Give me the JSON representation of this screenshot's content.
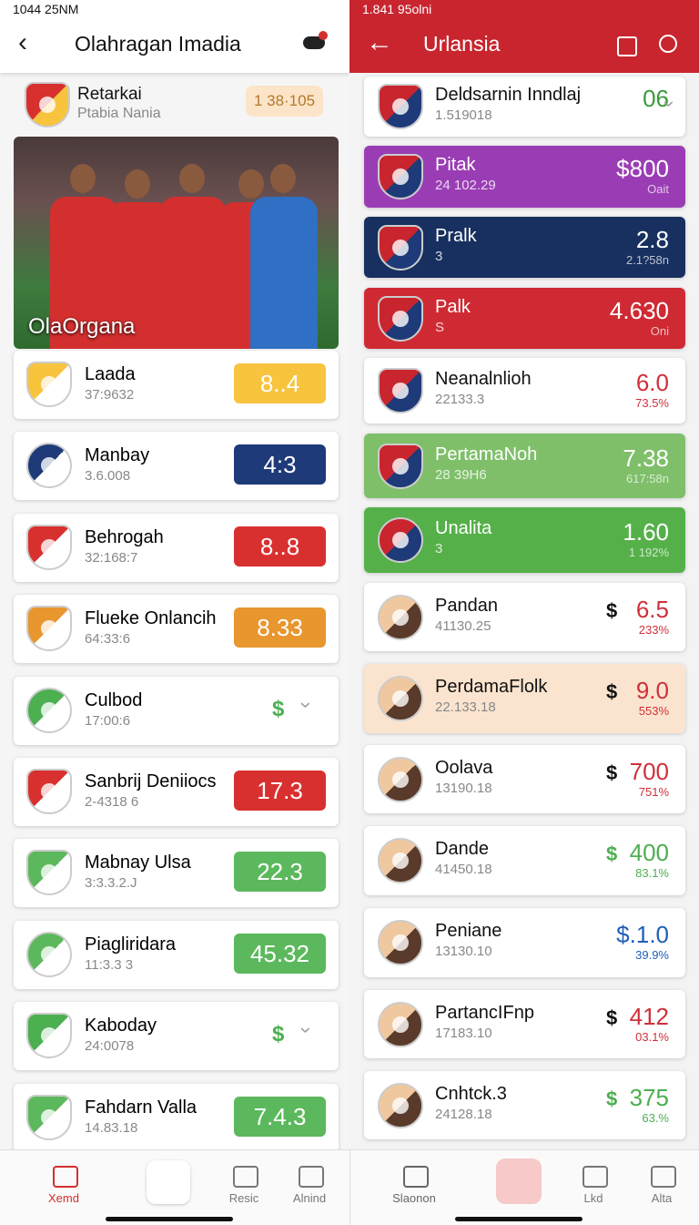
{
  "left": {
    "status": "1044 25NM",
    "title": "Olahragan Imadia",
    "featured": {
      "name": "Retarkai",
      "sub": "Ptabia Nania",
      "badge": "1 38·105"
    },
    "photo_caption": "OlaOrgana",
    "items": [
      {
        "name": "Laada",
        "sub": "37:9632",
        "badge": "8..4",
        "color": "#f8c43e"
      },
      {
        "name": "Manbay",
        "sub": "3.6.008",
        "badge": "4:3",
        "color": "#1e3a78"
      },
      {
        "name": "Behrogah",
        "sub": "32:168:7",
        "badge": "8..8",
        "color": "#d8302f"
      },
      {
        "name": "Flueke Onlancih",
        "sub": "64:33:6",
        "badge": "8.33",
        "color": "#e8962e"
      },
      {
        "name": "Culbod",
        "sub": "17:00:6",
        "currency": "$",
        "color": "#4caf50"
      },
      {
        "name": "Sanbrij Deniiocs",
        "sub": "2-4318 6",
        "badge": "17.3",
        "color": "#d8302f"
      },
      {
        "name": "Mabnay Ulsa",
        "sub": "3:3.3.2.J",
        "badge": "22.3",
        "color": "#5cb85c"
      },
      {
        "name": "Piagliridara",
        "sub": "11:3.3 3",
        "badge": "45.32",
        "color": "#5cb85c"
      },
      {
        "name": "Kaboday",
        "sub": "24:0078",
        "currency": "$",
        "color": "#4caf50"
      },
      {
        "name": "Fahdarn Valla",
        "sub": "14.83.18",
        "badge": "7.4.3",
        "color": "#5cb85c"
      }
    ],
    "nav": [
      "Xemd",
      "Resic",
      "Alnind"
    ]
  },
  "right": {
    "status": "1.841 95olni",
    "title": "Urlansia",
    "items": [
      {
        "name": "Deldsarnin Inndlaj",
        "sub": "1.519018",
        "value": "06",
        "bg": "#ffffff",
        "color": "#3a9a3a"
      },
      {
        "name": "Pitak",
        "sub": "24 102.29",
        "value": "$800",
        "note": "Oait",
        "bg": "#9a3db4",
        "color": "#ffffff"
      },
      {
        "name": "Pralk",
        "sub": "3",
        "value": "2.8",
        "note": "2.1?58n",
        "bg": "#17305f",
        "color": "#ffffff"
      },
      {
        "name": "Palk",
        "sub": "S",
        "value": "4.630",
        "note": "Oni",
        "bg": "#cf2a33",
        "color": "#ffffff"
      },
      {
        "name": "Neanalnlioh",
        "sub": "22133.3",
        "value": "6.0",
        "note": "73.5%",
        "bg": "#ffffff",
        "color": "#d0303a"
      },
      {
        "name": "PertamaNoh",
        "sub": "28 39H6",
        "value": "7.38",
        "note": "617:58n",
        "bg": "#7fbf6a",
        "color": "#ffffff"
      },
      {
        "name": "Unalita",
        "sub": "3",
        "value": "1.60",
        "note": "1 192%",
        "bg": "#56b04a",
        "color": "#ffffff"
      },
      {
        "name": "Pandan",
        "sub": "41130.25",
        "currency": "$",
        "value": "6.5",
        "note": "233%",
        "bg": "#ffffff",
        "color": "#d0303a"
      },
      {
        "name": "PerdamaFlolk",
        "sub": "22.133.18",
        "currency": "$",
        "value": "9.0",
        "note": "553%",
        "bg": "#fbe4cf",
        "color": "#d0303a"
      },
      {
        "name": "Oolava",
        "sub": "13190.18",
        "currency": "$",
        "value": "700",
        "note": "751%",
        "bg": "#ffffff",
        "color": "#d0303a"
      },
      {
        "name": "Dande",
        "sub": "41450.18",
        "currency": "$",
        "value": "400",
        "note": "83.1%",
        "bg": "#ffffff",
        "color": "#4caf50"
      },
      {
        "name": "Peniane",
        "sub": "13130.10",
        "value": "$.1.0",
        "note": "39.9%",
        "bg": "#ffffff",
        "color": "#1f5fb8"
      },
      {
        "name": "PartancIFnp",
        "sub": "17183.10",
        "currency": "$",
        "value": "412",
        "note": "03.1%",
        "bg": "#ffffff",
        "color": "#d0303a"
      },
      {
        "name": "Cnhtck.3",
        "sub": "24128.18",
        "currency": "$",
        "value": "375",
        "note": "63.%",
        "bg": "#ffffff",
        "color": "#4caf50"
      }
    ],
    "nav": [
      "Slaonon",
      "Lkd",
      "Alta"
    ]
  }
}
